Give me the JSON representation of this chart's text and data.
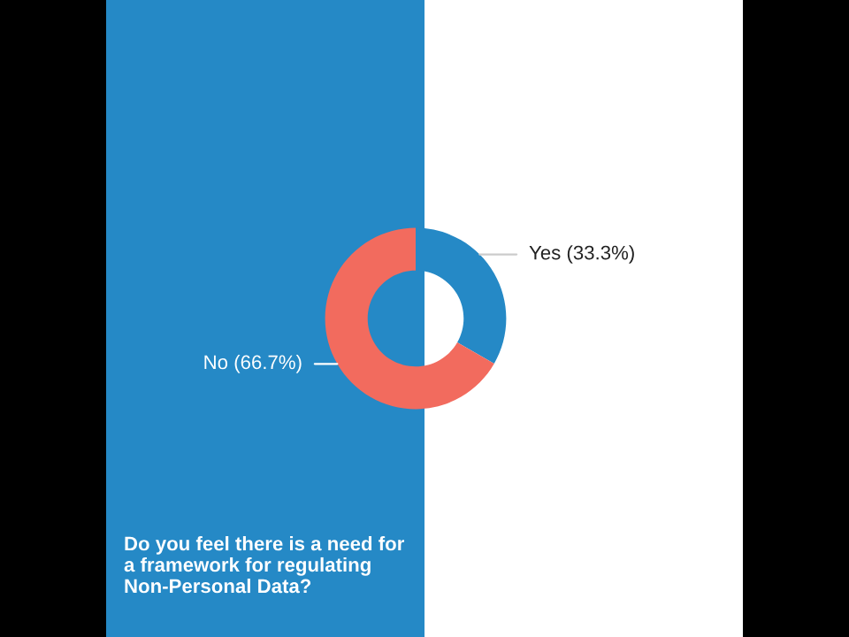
{
  "chart_data": {
    "type": "donut",
    "title": "Do you feel there is a need for\na framework for regulating\nNon-Personal Data?",
    "categories": [
      "Yes (33.3%)",
      "No (66.7%)"
    ],
    "values": [
      33.3,
      66.7
    ],
    "colors": [
      "#2589c6",
      "#f26b5e"
    ],
    "legend": false
  }
}
